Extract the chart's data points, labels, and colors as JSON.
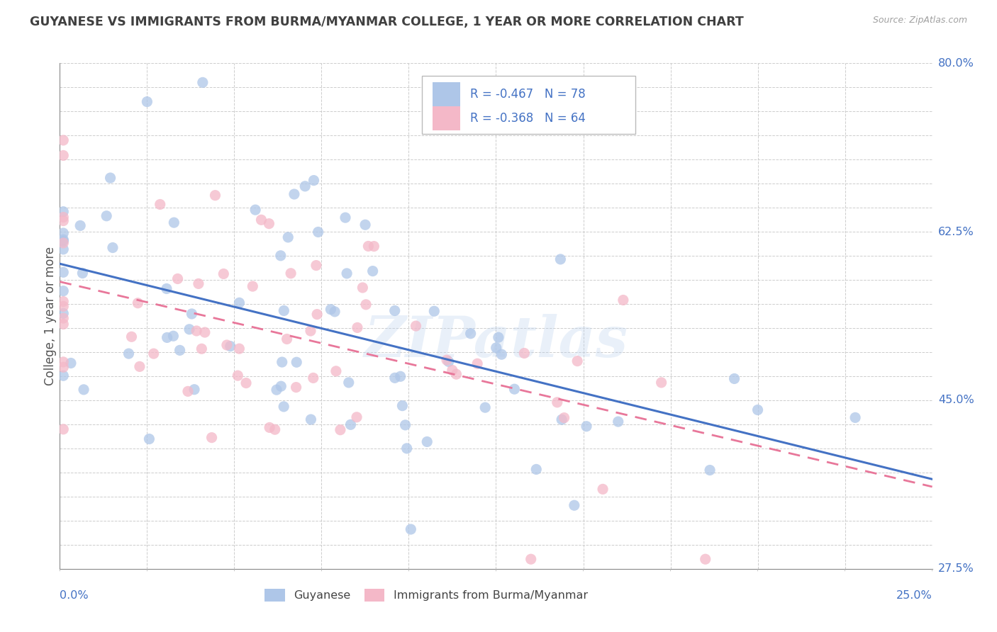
{
  "title": "GUYANESE VS IMMIGRANTS FROM BURMA/MYANMAR COLLEGE, 1 YEAR OR MORE CORRELATION CHART",
  "source": "Source: ZipAtlas.com",
  "ylabel": "College, 1 year or more",
  "xmin": 0.0,
  "xmax": 0.25,
  "ymin": 0.275,
  "ymax": 0.8,
  "ytick_labels_right": [
    "27.5%",
    "45.0%",
    "62.5%",
    "80.0%"
  ],
  "ytick_positions_right": [
    0.275,
    0.45,
    0.625,
    0.8
  ],
  "series1_name": "Guyanese",
  "series1_R": -0.467,
  "series1_N": 78,
  "series1_color": "#aec6e8",
  "series1_line_color": "#4472c4",
  "series2_name": "Immigrants from Burma/Myanmar",
  "series2_R": -0.368,
  "series2_N": 64,
  "series2_color": "#f4b8c8",
  "series2_line_color": "#e8779a",
  "legend_color": "#4472c4",
  "watermark": "ZIPatlas",
  "background_color": "#ffffff",
  "grid_color": "#c8c8c8",
  "title_color": "#404040",
  "axis_label_color": "#4472c4",
  "source_color": "#a0a0a0"
}
